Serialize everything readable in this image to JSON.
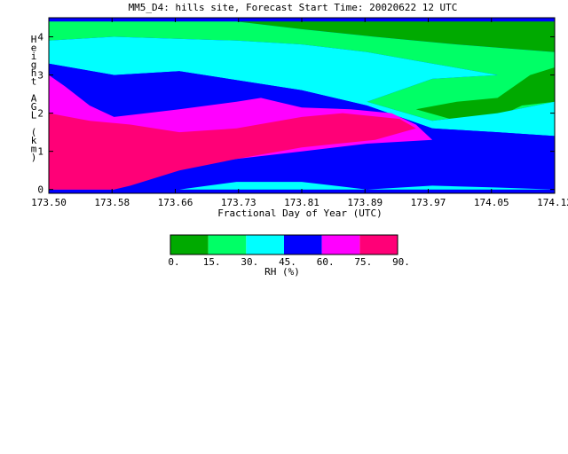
{
  "chart_data": {
    "type": "filled-contour",
    "title": "MM5_D4: hills site,  Forecast Start Time: 20020622 12 UTC",
    "xlabel": "Fractional Day of Year (UTC)",
    "ylabel": "Height AGL (km)",
    "xlim": [
      173.5,
      174.12
    ],
    "ylim": [
      -0.1,
      4.5
    ],
    "x_ticks": [
      "173.50",
      "173.58",
      "173.66",
      "173.73",
      "173.81",
      "173.89",
      "173.97",
      "174.05",
      "174.12"
    ],
    "y_ticks": [
      "0",
      "1",
      "2",
      "3",
      "4"
    ],
    "colorbar": {
      "title": "RH (%)",
      "levels": [
        "0.",
        "15.",
        "30.",
        "45.",
        "60.",
        "75.",
        "90."
      ],
      "colors": [
        "#00aa00",
        "#00ff66",
        "#00ffff",
        "#0000ff",
        "#ff00ff",
        "#ff0077"
      ]
    },
    "regions": [
      {
        "level_index": 0,
        "polygon": [
          [
            173.5,
            4.4
          ],
          [
            174.12,
            4.4
          ],
          [
            174.12,
            3.6
          ],
          [
            174.0,
            3.8
          ],
          [
            173.9,
            4.0
          ],
          [
            173.81,
            4.2
          ],
          [
            173.73,
            4.4
          ]
        ]
      },
      {
        "level_index": 1,
        "polygon": [
          [
            173.5,
            4.4
          ],
          [
            173.73,
            4.4
          ],
          [
            173.81,
            4.2
          ],
          [
            173.9,
            4.0
          ],
          [
            174.0,
            3.8
          ],
          [
            174.12,
            3.6
          ],
          [
            174.12,
            2.3
          ],
          [
            174.05,
            2.0
          ],
          [
            173.97,
            1.8
          ],
          [
            173.89,
            2.3
          ],
          [
            173.97,
            2.9
          ],
          [
            174.05,
            3.0
          ],
          [
            173.97,
            3.3
          ],
          [
            173.89,
            3.6
          ],
          [
            173.81,
            3.8
          ],
          [
            173.73,
            3.9
          ],
          [
            173.58,
            4.0
          ],
          [
            173.5,
            3.9
          ]
        ]
      },
      {
        "level_index": 0,
        "polygon": [
          [
            174.0,
            2.3
          ],
          [
            174.05,
            2.4
          ],
          [
            174.07,
            2.7
          ],
          [
            174.09,
            3.0
          ],
          [
            174.12,
            3.2
          ],
          [
            174.12,
            2.3
          ],
          [
            174.08,
            2.2
          ],
          [
            174.04,
            1.8
          ],
          [
            174.0,
            1.8
          ],
          [
            173.95,
            2.1
          ]
        ]
      },
      {
        "level_index": 2,
        "polygon": [
          [
            173.5,
            3.9
          ],
          [
            173.58,
            4.0
          ],
          [
            173.73,
            3.9
          ],
          [
            173.81,
            3.8
          ],
          [
            173.89,
            3.6
          ],
          [
            173.97,
            3.3
          ],
          [
            174.05,
            3.0
          ],
          [
            173.97,
            2.9
          ],
          [
            173.89,
            2.3
          ],
          [
            173.97,
            1.8
          ],
          [
            174.05,
            2.0
          ],
          [
            174.12,
            2.3
          ],
          [
            174.12,
            1.4
          ],
          [
            174.05,
            1.5
          ],
          [
            173.97,
            1.6
          ],
          [
            173.93,
            1.9
          ],
          [
            173.89,
            2.2
          ],
          [
            173.81,
            2.6
          ],
          [
            173.66,
            3.1
          ],
          [
            173.58,
            3.0
          ],
          [
            173.5,
            3.3
          ]
        ]
      },
      {
        "level_index": 3,
        "polygon": [
          [
            173.5,
            3.3
          ],
          [
            173.58,
            3.0
          ],
          [
            173.66,
            3.1
          ],
          [
            173.81,
            2.6
          ],
          [
            173.89,
            2.2
          ],
          [
            173.93,
            1.9
          ],
          [
            173.97,
            1.6
          ],
          [
            174.05,
            1.5
          ],
          [
            174.12,
            1.4
          ],
          [
            174.12,
            0.0
          ],
          [
            174.05,
            0.05
          ],
          [
            173.97,
            0.1
          ],
          [
            173.89,
            0.0
          ],
          [
            173.81,
            0.0
          ],
          [
            173.73,
            0.0
          ],
          [
            173.66,
            0.0
          ],
          [
            173.58,
            0.0
          ],
          [
            173.5,
            0.0
          ]
        ]
      },
      {
        "level_index": 2,
        "polygon": [
          [
            173.66,
            0.0
          ],
          [
            173.73,
            0.2
          ],
          [
            173.81,
            0.2
          ],
          [
            173.89,
            0.0
          ],
          [
            173.97,
            0.1
          ],
          [
            174.05,
            0.05
          ],
          [
            174.12,
            0.0
          ]
        ]
      },
      {
        "level_index": 4,
        "polygon": [
          [
            173.5,
            3.0
          ],
          [
            173.52,
            2.7
          ],
          [
            173.55,
            2.2
          ],
          [
            173.58,
            1.9
          ],
          [
            173.66,
            2.1
          ],
          [
            173.73,
            2.3
          ],
          [
            173.76,
            2.4
          ],
          [
            173.78,
            2.3
          ],
          [
            173.81,
            2.15
          ],
          [
            173.87,
            2.1
          ],
          [
            173.92,
            2.0
          ],
          [
            173.95,
            1.7
          ],
          [
            173.97,
            1.3
          ],
          [
            173.89,
            1.2
          ],
          [
            173.81,
            1.0
          ],
          [
            173.73,
            0.8
          ],
          [
            173.66,
            0.6
          ],
          [
            173.6,
            0.3
          ],
          [
            173.58,
            0.0
          ],
          [
            173.5,
            0.0
          ]
        ]
      },
      {
        "level_index": 5,
        "polygon": [
          [
            173.5,
            2.0
          ],
          [
            173.55,
            1.8
          ],
          [
            173.6,
            1.7
          ],
          [
            173.66,
            1.5
          ],
          [
            173.73,
            1.6
          ],
          [
            173.81,
            1.9
          ],
          [
            173.86,
            2.0
          ],
          [
            173.93,
            1.85
          ],
          [
            173.95,
            1.6
          ],
          [
            173.9,
            1.3
          ],
          [
            173.81,
            1.1
          ],
          [
            173.73,
            0.8
          ],
          [
            173.66,
            0.5
          ],
          [
            173.6,
            0.1
          ],
          [
            173.58,
            0.0
          ],
          [
            173.5,
            0.0
          ]
        ]
      }
    ]
  }
}
